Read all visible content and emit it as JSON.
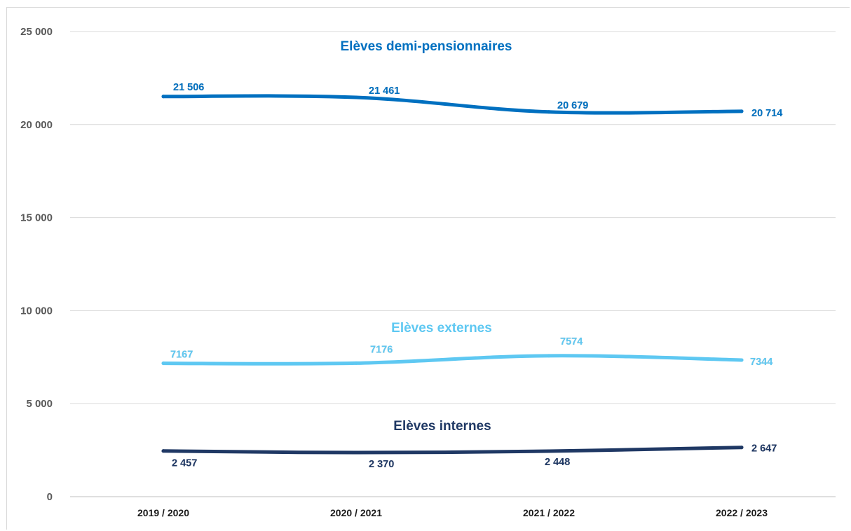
{
  "chart_data": {
    "type": "line",
    "title": "",
    "xlabel": "",
    "ylabel": "",
    "categories": [
      "2019 / 2020",
      "2020 / 2021",
      "2021 / 2022",
      "2022 / 2023"
    ],
    "ylim": [
      0,
      25000
    ],
    "yticks": [
      0,
      5000,
      10000,
      15000,
      20000,
      25000
    ],
    "ytick_labels": [
      "0",
      "5 000",
      "10 000",
      "15 000",
      "20 000",
      "25 000"
    ],
    "grid": true,
    "legend": "none",
    "series": [
      {
        "name": "Elèves demi-pensionnaires",
        "color": "#0070c0",
        "values": [
          21506,
          21461,
          20679,
          20714
        ],
        "labels": [
          "21 506",
          "21 461",
          "20 679",
          "20 714"
        ]
      },
      {
        "name": "Elèves externes",
        "color": "#5ec8f2",
        "values": [
          7167,
          7176,
          7574,
          7344
        ],
        "labels": [
          "7167",
          "7176",
          "7574",
          "7344"
        ]
      },
      {
        "name": "Elèves internes",
        "color": "#1f3864",
        "values": [
          2457,
          2370,
          2448,
          2647
        ],
        "labels": [
          "2 457",
          "2 370",
          "2 448",
          "2 647"
        ]
      }
    ]
  }
}
